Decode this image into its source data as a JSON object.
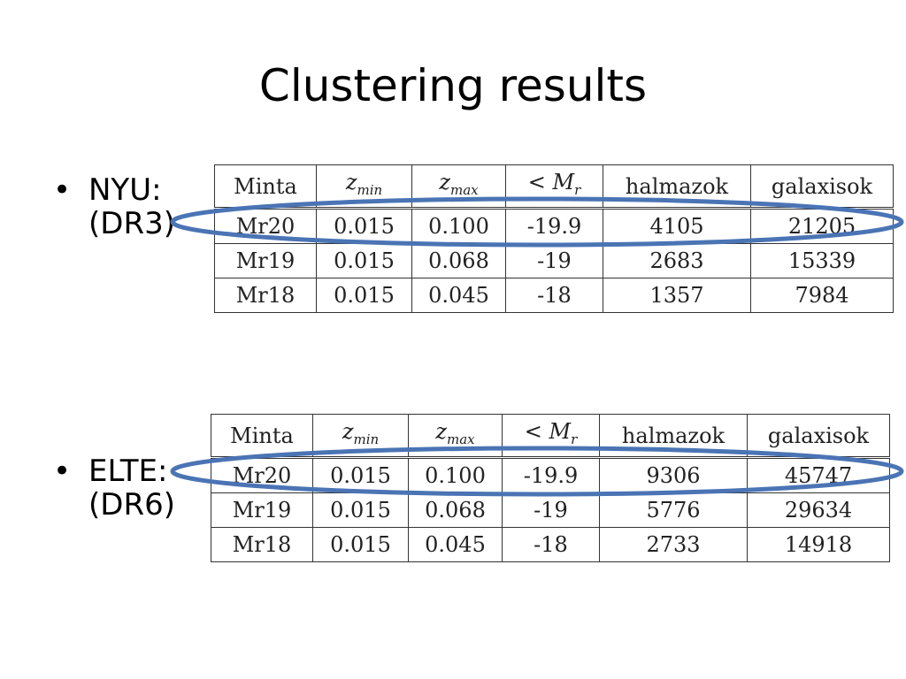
{
  "title": "Clustering results",
  "bullets": [
    {
      "line1": "NYU:",
      "line2": "(DR3)",
      "symbol": "•"
    },
    {
      "line1": "ELTE:",
      "line2": "(DR6)",
      "symbol": "•"
    }
  ],
  "headers": {
    "minta": "Minta",
    "zmin": "z",
    "zmin_sub": "min",
    "zmax": "z",
    "zmax_sub": "max",
    "mr": "< M",
    "mr_sub": "r",
    "halmazok": "halmazok",
    "galaxisok": "galaxisok"
  },
  "tables": [
    {
      "rows": [
        [
          "Mr20",
          "0.015",
          "0.100",
          "-19.9",
          "4105",
          "21205"
        ],
        [
          "Mr19",
          "0.015",
          "0.068",
          "-19",
          "2683",
          "15339"
        ],
        [
          "Mr18",
          "0.015",
          "0.045",
          "-18",
          "1357",
          "7984"
        ]
      ]
    },
    {
      "rows": [
        [
          "Mr20",
          "0.015",
          "0.100",
          "-19.9",
          "9306",
          "45747"
        ],
        [
          "Mr19",
          "0.015",
          "0.068",
          "-19",
          "5776",
          "29634"
        ],
        [
          "Mr18",
          "0.015",
          "0.045",
          "-18",
          "2733",
          "14918"
        ]
      ]
    }
  ],
  "highlight_color": "#4a74b4"
}
